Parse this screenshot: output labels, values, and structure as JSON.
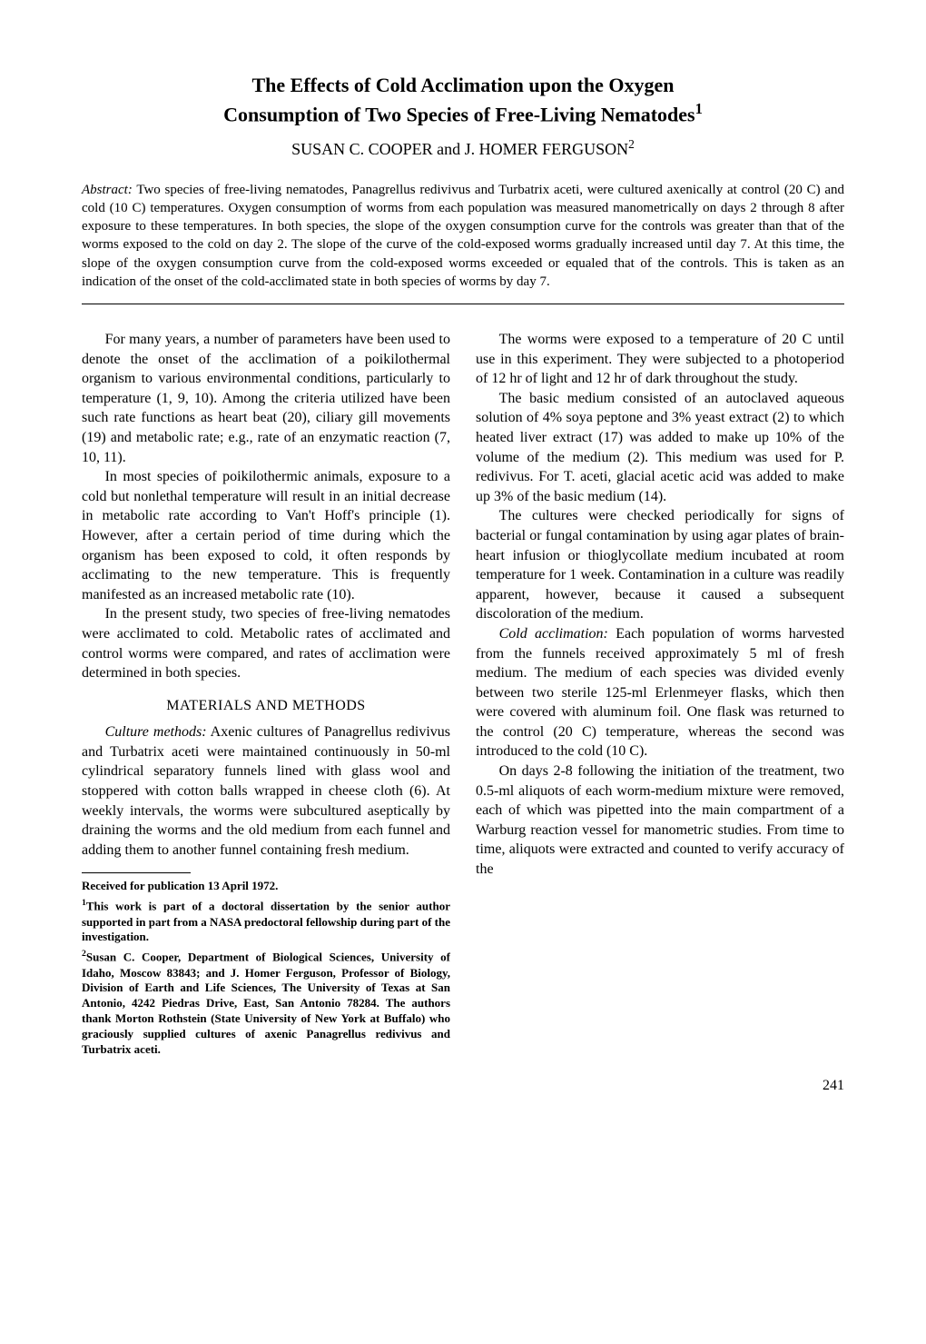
{
  "title_line1": "The Effects of Cold Acclimation upon the Oxygen",
  "title_line2": "Consumption of Two Species of Free-Living Nematodes",
  "title_sup": "1",
  "authors": "SUSAN C. COOPER and J. HOMER FERGUSON",
  "authors_sup": "2",
  "abstract_label": "Abstract:",
  "abstract_text": "Two species of free-living nematodes, Panagrellus redivivus and Turbatrix aceti, were cultured axenically at control (20 C) and cold (10 C) temperatures. Oxygen consumption of worms from each population was measured manometrically on days 2 through 8 after exposure to these temperatures. In both species, the slope of the oxygen consumption curve for the controls was greater than that of the worms exposed to the cold on day 2. The slope of the curve of the cold-exposed worms gradually increased until day 7. At this time, the slope of the oxygen consumption curve from the cold-exposed worms exceeded or equaled that of the controls. This is taken as an indication of the onset of the cold-acclimated state in both species of worms by day 7.",
  "body": {
    "p1": "For many years, a number of parameters have been used to denote the onset of the acclimation of a poikilothermal organism to various environmental conditions, particularly to temperature (1, 9, 10). Among the criteria utilized have been such rate functions as heart beat (20), ciliary gill movements (19) and metabolic rate; e.g., rate of an enzymatic reaction (7, 10, 11).",
    "p2": "In most species of poikilothermic animals, exposure to a cold but nonlethal temperature will result in an initial decrease in metabolic rate according to Van't Hoff's principle (1). However, after a certain period of time during which the organism has been exposed to cold, it often responds by acclimating to the new temperature. This is frequently manifested as an increased metabolic rate (10).",
    "p3": "In the present study, two species of free-living nematodes were acclimated to cold. Metabolic rates of acclimated and control worms were compared, and rates of acclimation were determined in both species.",
    "heading1": "MATERIALS AND METHODS",
    "p4_label": "Culture methods:",
    "p4_text": " Axenic cultures of Panagrellus redivivus and Turbatrix aceti were maintained continuously in 50-ml cylindrical separatory funnels lined with glass wool and stoppered with cotton balls wrapped in cheese cloth (6). At weekly intervals, the worms were subcultured aseptically by draining the worms and the old medium from each funnel and adding them to another funnel containing fresh medium.",
    "p5": "The worms were exposed to a temperature of 20 C until use in this experiment. They were subjected to a photoperiod of 12 hr of light and 12 hr of dark throughout the study.",
    "p6": "The basic medium consisted of an autoclaved aqueous solution of 4% soya peptone and 3% yeast extract (2) to which heated liver extract (17) was added to make up 10% of the volume of the medium (2). This medium was used for P. redivivus. For T. aceti, glacial acetic acid was added to make up 3% of the basic medium (14).",
    "p7": "The cultures were checked periodically for signs of bacterial or fungal contamination by using agar plates of brain-heart infusion or thioglycollate medium incubated at room temperature for 1 week. Contamination in a culture was readily apparent, however, because it caused a subsequent discoloration of the medium.",
    "p8_label": "Cold acclimation:",
    "p8_text": " Each population of worms harvested from the funnels received approximately 5 ml of fresh medium. The medium of each species was divided evenly between two sterile 125-ml Erlenmeyer flasks, which then were covered with aluminum foil. One flask was returned to the control (20 C) temperature, whereas the second was introduced to the cold (10 C).",
    "p9": "On days 2-8 following the initiation of the treatment, two 0.5-ml aliquots of each worm-medium mixture were removed, each of which was pipetted into the main compartment of a Warburg reaction vessel for manometric studies. From time to time, aliquots were extracted and counted to verify accuracy of the"
  },
  "footnotes": {
    "received": "Received for publication 13 April 1972.",
    "fn1_sup": "1",
    "fn1": "This work is part of a doctoral dissertation by the senior author supported in part from a NASA predoctoral fellowship during part of the investigation.",
    "fn2_sup": "2",
    "fn2": "Susan C. Cooper, Department of Biological Sciences, University of Idaho, Moscow 83843; and J. Homer Ferguson, Professor of Biology, Division of Earth and Life Sciences, The University of Texas at San Antonio, 4242 Piedras Drive, East, San Antonio 78284. The authors thank Morton Rothstein (State University of New York at Buffalo) who graciously supplied cultures of axenic Panagrellus redivivus and Turbatrix aceti."
  },
  "page_number": "241"
}
